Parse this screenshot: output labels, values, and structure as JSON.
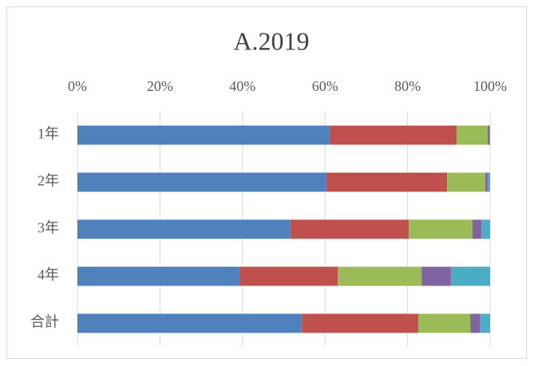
{
  "chart_data": {
    "type": "stacked_bar_horizontal",
    "title": "A.2019",
    "categories": [
      "1年",
      "2年",
      "3年",
      "4年",
      "合計"
    ],
    "series": [
      {
        "color": "#4f81bd",
        "values": [
          61.1,
          60.3,
          51.6,
          39.3,
          54.4
        ]
      },
      {
        "color": "#c0504d",
        "values": [
          30.8,
          29.3,
          28.7,
          23.8,
          28.2
        ]
      },
      {
        "color": "#9bbb59",
        "values": [
          7.5,
          9.2,
          15.4,
          20.3,
          12.6
        ]
      },
      {
        "color": "#8064a2",
        "values": [
          0.4,
          0.6,
          2.2,
          7.1,
          2.3
        ]
      },
      {
        "color": "#4bacc6",
        "values": [
          0.2,
          0.6,
          2.1,
          9.5,
          2.5
        ]
      }
    ],
    "xlim": [
      0,
      100
    ],
    "xticks": [
      {
        "value": 0,
        "label": "0%"
      },
      {
        "value": 20,
        "label": "20%"
      },
      {
        "value": 40,
        "label": "40%"
      },
      {
        "value": 60,
        "label": "60%"
      },
      {
        "value": 80,
        "label": "80%"
      },
      {
        "value": 100,
        "label": "100%"
      }
    ],
    "grid": true
  }
}
